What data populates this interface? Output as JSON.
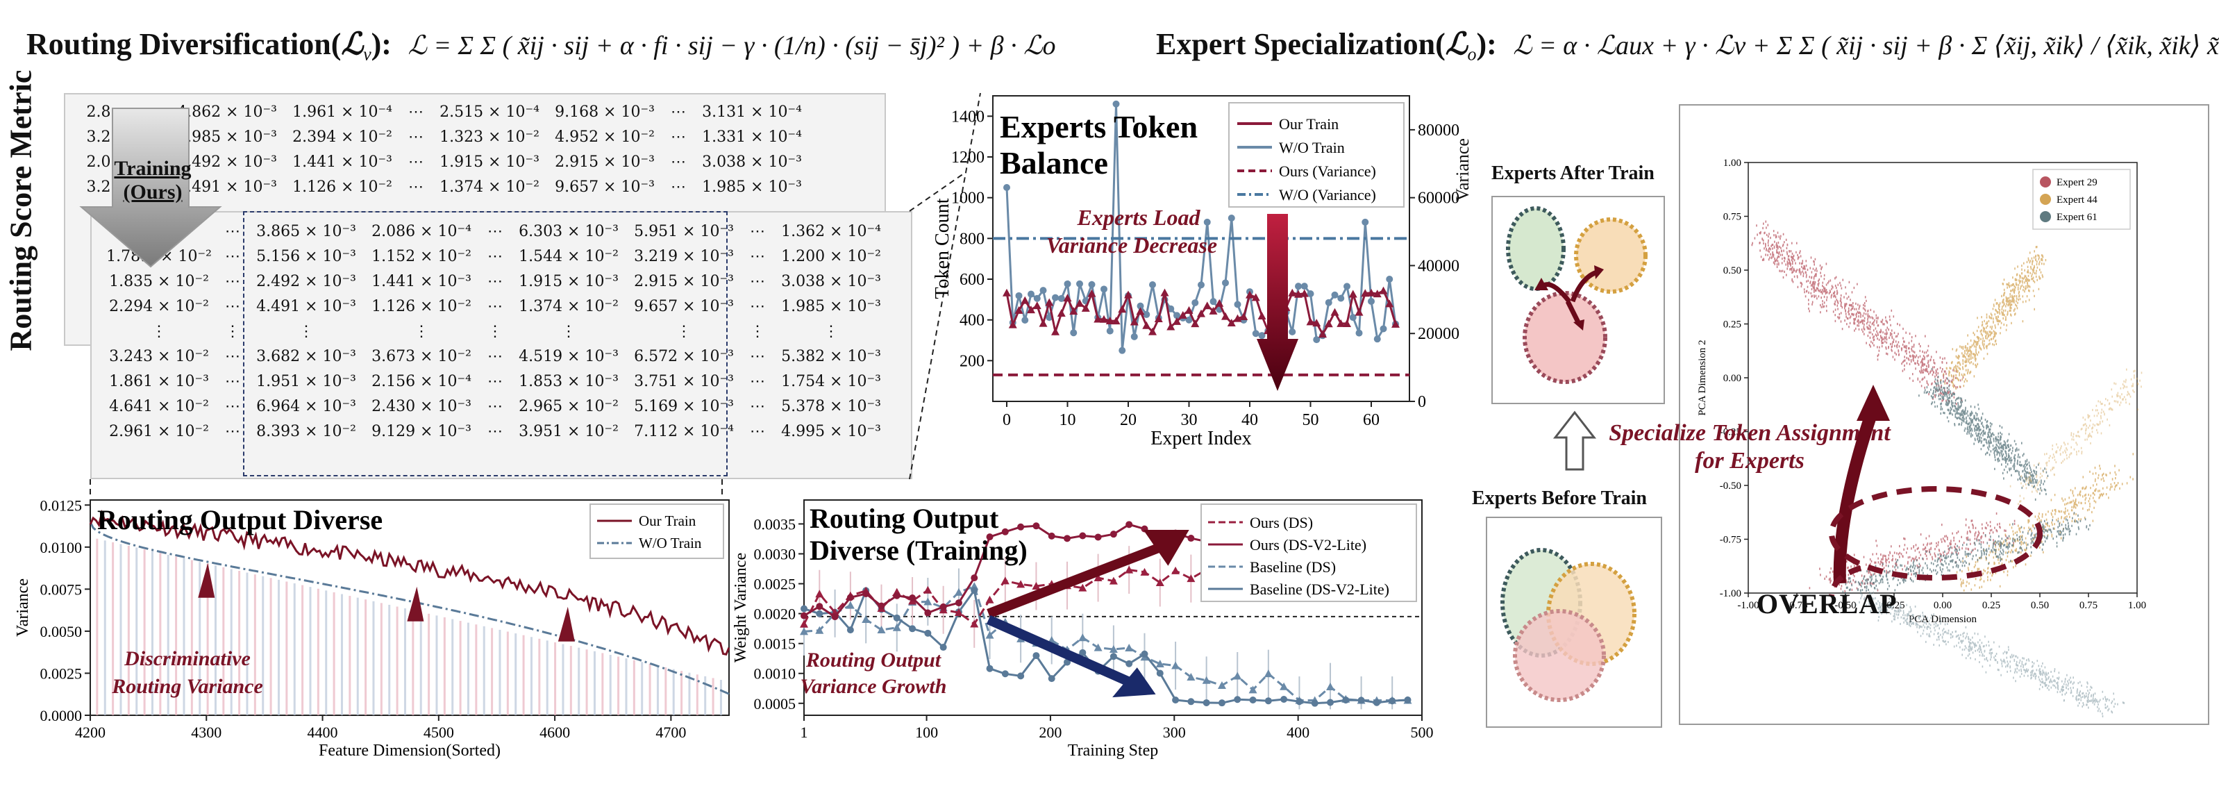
{
  "formulas": {
    "left_title": "Routing Diversification(",
    "left_sym": "ℒ",
    "left_sub": "v",
    "left_close": "):",
    "left_expr": "ℒ = Σ Σ ( x̃ij · sij + α · fi · sij − γ · (1/n) · (sij − s̄j)² ) + β · ℒo",
    "right_title": "Expert Specialization(",
    "right_sym": "ℒ",
    "right_sub": "o",
    "right_close": "):",
    "right_expr": "ℒ = α · ℒaux + γ · ℒv + Σ Σ ( x̃ij · sij + β · Σ ⟨x̃ij, x̃ik⟩ / ⟨x̃ik, x̃ik⟩ x̃ik )"
  },
  "matrix_section": {
    "side_label": "Routing Score Metric",
    "arrow_label_1": "Training",
    "arrow_label_2": "(Ours)",
    "back_matrix": [
      [
        "2.8…",
        "⋯",
        "4.862 × 10⁻³",
        "1.961 × 10⁻⁴",
        "⋯",
        "2.515 × 10⁻⁴",
        "9.168 × 10⁻³",
        "⋯",
        "3.131 × 10⁻⁴"
      ],
      [
        "3.2…",
        "⋯",
        "3.985 × 10⁻³",
        "2.394 × 10⁻²",
        "⋯",
        "1.323 × 10⁻²",
        "4.952 × 10⁻²",
        "⋯",
        "1.331 × 10⁻⁴"
      ],
      [
        "2.0…",
        "⋯",
        "2.492 × 10⁻³",
        "1.441 × 10⁻³",
        "⋯",
        "1.915 × 10⁻³",
        "2.915 × 10⁻³",
        "⋯",
        "3.038 × 10⁻³"
      ],
      [
        "3.2…",
        "⋯",
        "4.491 × 10⁻³",
        "1.126 × 10⁻²",
        "⋯",
        "1.374 × 10⁻²",
        "9.657 × 10⁻³",
        "⋯",
        "1.985 × 10⁻³"
      ]
    ],
    "front_matrix": [
      [
        "",
        "⋯",
        "3.865 × 10⁻³",
        "2.086 × 10⁻⁴",
        "⋯",
        "6.303 × 10⁻³",
        "5.951 × 10⁻³",
        "⋯",
        "1.362 × 10⁻⁴"
      ],
      [
        "1.78… × 10⁻²",
        "⋯",
        "5.156 × 10⁻³",
        "1.152 × 10⁻²",
        "⋯",
        "1.544 × 10⁻²",
        "3.219 × 10⁻³",
        "⋯",
        "1.200 × 10⁻²"
      ],
      [
        "1.835 × 10⁻²",
        "⋯",
        "2.492 × 10⁻³",
        "1.441 × 10⁻³",
        "⋯",
        "1.915 × 10⁻³",
        "2.915 × 10⁻³",
        "⋯",
        "3.038 × 10⁻³"
      ],
      [
        "2.294 × 10⁻²",
        "⋯",
        "4.491 × 10⁻³",
        "1.126 × 10⁻²",
        "⋯",
        "1.374 × 10⁻²",
        "9.657 × 10⁻³",
        "⋯",
        "1.985 × 10⁻³"
      ],
      [
        "⋮",
        "⋮",
        "⋮",
        "⋮",
        "⋮",
        "⋮",
        "⋮",
        "⋮",
        "⋮"
      ],
      [
        "3.243 × 10⁻²",
        "⋯",
        "3.682 × 10⁻³",
        "3.673 × 10⁻²",
        "⋯",
        "4.519 × 10⁻³",
        "6.572 × 10⁻³",
        "⋯",
        "5.382 × 10⁻³"
      ],
      [
        "1.861 × 10⁻³",
        "⋯",
        "1.951 × 10⁻³",
        "2.156 × 10⁻⁴",
        "⋯",
        "1.853 × 10⁻³",
        "3.751 × 10⁻³",
        "⋯",
        "1.754 × 10⁻³"
      ],
      [
        "4.641 × 10⁻²",
        "⋯",
        "6.964 × 10⁻³",
        "2.430 × 10⁻³",
        "⋯",
        "2.965 × 10⁻²",
        "5.169 × 10⁻³",
        "⋯",
        "5.378 × 10⁻³"
      ],
      [
        "2.961 × 10⁻²",
        "⋯",
        "8.393 × 10⁻²",
        "9.129 × 10⁻³",
        "⋯",
        "3.951 × 10⁻²",
        "7.112 × 10⁻⁴",
        "⋯",
        "4.995 × 10⁻³"
      ]
    ]
  },
  "token_balance": {
    "title_1": "Experts Token",
    "title_2": "Balance",
    "annotation_1": "Experts Load",
    "annotation_2": "Variance Decrease",
    "ylabel_left": "Token Count",
    "ylabel_right": "Variance",
    "xlabel": "Expert Index",
    "legend": [
      "Our Train",
      "W/O Train",
      "Ours (Variance)",
      "W/O (Variance)"
    ],
    "y_ticks": [
      "200",
      "400",
      "600",
      "800",
      "1000",
      "1200",
      "1400"
    ],
    "y2_ticks": [
      "0",
      "20000",
      "40000",
      "60000",
      "80000"
    ],
    "x_ticks": [
      "0",
      "10",
      "20",
      "30",
      "40",
      "50",
      "60"
    ],
    "colors": {
      "ours": "#8b1a3a",
      "wo": "#6a8aa8"
    }
  },
  "diverse": {
    "title": "Routing Output Diverse",
    "ylabel": "Variance",
    "xlabel": "Feature Dimension(Sorted)",
    "legend": [
      "Our Train",
      "W/O Train"
    ],
    "annotation_1": "Discriminative",
    "annotation_2": "Routing Variance",
    "y_ticks": [
      "0.0000",
      "0.0025",
      "0.0050",
      "0.0075",
      "0.0100",
      "0.0125"
    ],
    "x_ticks": [
      "4200",
      "4300",
      "4400",
      "4500",
      "4600",
      "4700"
    ]
  },
  "training": {
    "title_1": "Routing Output",
    "title_2": "Diverse (Training)",
    "ylabel": "Weight Variance",
    "xlabel": "Training Step",
    "legend": [
      "Ours (DS)",
      "Ours (DS-V2-Lite)",
      "Baseline (DS)",
      "Baseline (DS-V2-Lite)"
    ],
    "annotation_1": "Routing Output",
    "annotation_2": "Variance Growth",
    "y_ticks": [
      "0.0005",
      "0.0010",
      "0.0015",
      "0.0020",
      "0.0025",
      "0.0030",
      "0.0035"
    ],
    "x_ticks": [
      "1",
      "100",
      "200",
      "300",
      "400",
      "500"
    ]
  },
  "experts": {
    "after_title": "Experts After Train",
    "before_title": "Experts Before Train",
    "variance_label": "Variance",
    "specialize_1": "Specialize Token Assignment",
    "specialize_2": "for Experts",
    "overlap": "OVERLAP"
  },
  "pca": {
    "legend": [
      "Expert 29",
      "Expert 44",
      "Expert 61"
    ],
    "xlabel": "PCA Dimension",
    "ylabel": "PCA Dimension 2",
    "y_ticks": [
      "1.00",
      "0.75",
      "0.50",
      "0.25",
      "0.00",
      "-0.25",
      "-0.50",
      "-0.75",
      "-1.00"
    ],
    "x_ticks": [
      "-1.00",
      "-0.75",
      "-0.50",
      "-0.25",
      "0.00",
      "0.25",
      "0.50",
      "0.75",
      "1.00"
    ],
    "colors": {
      "e29": "#b85560",
      "e44": "#d4a454",
      "e61": "#5f7a80"
    }
  }
}
